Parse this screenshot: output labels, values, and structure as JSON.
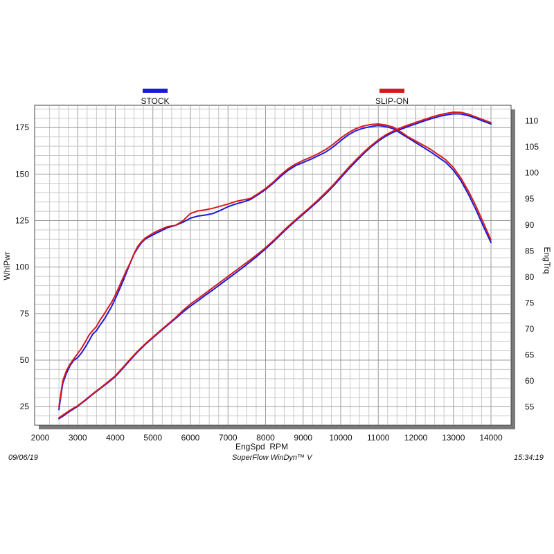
{
  "footer": {
    "date": "09/06/19",
    "software": "SuperFlow WinDyn™ V",
    "time": "15:34:19"
  },
  "chart_data": {
    "type": "line",
    "xlabel": "EngSpd  RPM",
    "ylabel_left": "WhlPwr",
    "ylabel_right": "EngTrq",
    "xlim": [
      2000,
      14000
    ],
    "xticks": [
      2000,
      3000,
      4000,
      5000,
      6000,
      7000,
      8000,
      9000,
      10000,
      11000,
      12000,
      13000,
      14000
    ],
    "ylim_left": [
      15,
      187
    ],
    "yticks_left": [
      25,
      50,
      75,
      100,
      125,
      150,
      175
    ],
    "ylim_right": [
      51.5,
      113
    ],
    "yticks_right": [
      55,
      60,
      65,
      70,
      75,
      80,
      85,
      90,
      95,
      100,
      105,
      110
    ],
    "grid": true,
    "legend": [
      {
        "name": "STOCK",
        "color": "#1a1adc"
      },
      {
        "name": "SLIP-ON",
        "color": "#d81a1a"
      }
    ],
    "series": [
      {
        "name": "STOCK",
        "quantity": "power",
        "axis": "left",
        "color": "#1a1adc",
        "x": [
          2500,
          2600,
          2800,
          3000,
          3200,
          3400,
          3600,
          3800,
          4000,
          4200,
          4400,
          4600,
          4800,
          5000,
          5200,
          5400,
          5600,
          5800,
          6000,
          6200,
          6400,
          6600,
          6800,
          7000,
          7200,
          7400,
          7600,
          7800,
          8000,
          8200,
          8400,
          8600,
          8800,
          9000,
          9200,
          9400,
          9600,
          9800,
          10000,
          10200,
          10400,
          10600,
          10800,
          11000,
          11200,
          11400,
          11600,
          11800,
          12000,
          12200,
          12400,
          12600,
          12800,
          13000,
          13200,
          13400,
          13600,
          13800,
          14000
        ],
        "y": [
          18.5,
          19.8,
          22.6,
          25.2,
          28.3,
          31.6,
          34.7,
          37.8,
          41.1,
          45.5,
          50.1,
          54.5,
          58.4,
          62.0,
          65.5,
          68.9,
          72.3,
          75.8,
          79.0,
          81.9,
          84.9,
          87.8,
          90.8,
          93.8,
          96.8,
          99.8,
          103.0,
          106.3,
          109.8,
          113.5,
          117.4,
          121.3,
          124.9,
          128.4,
          131.9,
          135.5,
          139.4,
          143.5,
          148.0,
          152.5,
          156.7,
          160.8,
          164.5,
          167.7,
          170.4,
          172.5,
          174.1,
          175.6,
          177.0,
          178.4,
          179.7,
          180.9,
          181.8,
          182.4,
          182.3,
          181.4,
          180.0,
          178.4,
          176.9
        ]
      },
      {
        "name": "SLIP-ON",
        "quantity": "power",
        "axis": "left",
        "color": "#d81a1a",
        "x": [
          2500,
          2600,
          2800,
          3000,
          3200,
          3400,
          3600,
          3800,
          4000,
          4200,
          4400,
          4600,
          4800,
          5000,
          5200,
          5400,
          5600,
          5800,
          6000,
          6200,
          6400,
          6600,
          6800,
          7000,
          7200,
          7400,
          7600,
          7800,
          8000,
          8200,
          8400,
          8600,
          8800,
          9000,
          9200,
          9400,
          9600,
          9800,
          10000,
          10200,
          10400,
          10600,
          10800,
          11000,
          11200,
          11400,
          11600,
          11800,
          12000,
          12200,
          12400,
          12600,
          12800,
          13000,
          13200,
          13400,
          13600,
          13800,
          14000
        ],
        "y": [
          19.0,
          20.4,
          23.1,
          25.5,
          28.6,
          31.9,
          35.0,
          38.2,
          41.6,
          46.0,
          50.6,
          54.9,
          58.8,
          62.4,
          65.9,
          69.3,
          72.8,
          76.6,
          80.1,
          83.0,
          86.0,
          89.0,
          92.0,
          95.0,
          98.0,
          101.0,
          104.0,
          107.1,
          110.5,
          114.1,
          118.0,
          121.9,
          125.5,
          129.0,
          132.5,
          136.2,
          140.1,
          144.2,
          148.8,
          153.3,
          157.5,
          161.5,
          165.2,
          168.4,
          171.1,
          173.2,
          174.9,
          176.4,
          177.8,
          179.2,
          180.5,
          181.7,
          182.6,
          183.3,
          183.2,
          182.2,
          180.7,
          179.2,
          177.6
        ]
      },
      {
        "name": "STOCK",
        "quantity": "torque",
        "axis": "right",
        "color": "#1a1adc",
        "x": [
          2500,
          2550,
          2600,
          2700,
          2800,
          2900,
          3000,
          3100,
          3200,
          3300,
          3400,
          3500,
          3600,
          3700,
          3800,
          3900,
          4000,
          4100,
          4200,
          4300,
          4400,
          4500,
          4600,
          4700,
          4800,
          5000,
          5200,
          5400,
          5600,
          5800,
          6000,
          6200,
          6400,
          6600,
          6800,
          7000,
          7200,
          7400,
          7600,
          7800,
          8000,
          8200,
          8400,
          8600,
          8800,
          9000,
          9200,
          9400,
          9600,
          9800,
          10000,
          10200,
          10400,
          10600,
          10800,
          11000,
          11200,
          11400,
          11600,
          11800,
          12000,
          12200,
          12400,
          12600,
          12800,
          13000,
          13200,
          13400,
          13600,
          13800,
          14000
        ],
        "y": [
          54.5,
          57.0,
          59.5,
          61.5,
          63.0,
          64.0,
          64.5,
          65.4,
          66.5,
          67.7,
          69.0,
          69.7,
          70.8,
          71.8,
          73.0,
          74.3,
          75.8,
          77.4,
          79.1,
          80.9,
          82.7,
          84.4,
          85.6,
          86.6,
          87.3,
          88.1,
          88.8,
          89.5,
          89.9,
          90.5,
          91.3,
          91.7,
          91.9,
          92.2,
          92.8,
          93.5,
          94.0,
          94.4,
          94.9,
          95.8,
          96.8,
          98.0,
          99.3,
          100.5,
          101.4,
          102.0,
          102.6,
          103.3,
          104.0,
          105.0,
          106.2,
          107.3,
          108.1,
          108.6,
          108.9,
          109.1,
          108.9,
          108.5,
          107.6,
          106.7,
          105.8,
          104.9,
          104.0,
          103.0,
          102.0,
          100.5,
          98.5,
          95.9,
          92.9,
          89.7,
          86.6
        ]
      },
      {
        "name": "SLIP-ON",
        "quantity": "torque",
        "axis": "right",
        "color": "#d81a1a",
        "x": [
          2500,
          2550,
          2600,
          2700,
          2800,
          2900,
          3000,
          3100,
          3200,
          3300,
          3400,
          3500,
          3600,
          3700,
          3800,
          3900,
          4000,
          4100,
          4200,
          4300,
          4400,
          4500,
          4600,
          4700,
          4800,
          5000,
          5200,
          5400,
          5600,
          5800,
          6000,
          6200,
          6400,
          6600,
          6800,
          7000,
          7200,
          7400,
          7600,
          7800,
          8000,
          8200,
          8400,
          8600,
          8800,
          9000,
          9200,
          9400,
          9600,
          9800,
          10000,
          10200,
          10400,
          10600,
          10800,
          11000,
          11200,
          11400,
          11600,
          11800,
          12000,
          12200,
          12400,
          12600,
          12800,
          13000,
          13200,
          13400,
          13600,
          13800,
          14000
        ],
        "y": [
          55.0,
          57.5,
          60.0,
          62.0,
          63.3,
          64.3,
          65.3,
          66.3,
          67.5,
          68.8,
          69.7,
          70.5,
          71.8,
          72.8,
          74.0,
          75.1,
          76.5,
          78.1,
          79.7,
          81.3,
          82.8,
          84.5,
          85.9,
          86.8,
          87.5,
          88.4,
          89.1,
          89.7,
          89.9,
          90.8,
          92.2,
          92.7,
          92.9,
          93.2,
          93.6,
          94.0,
          94.5,
          94.8,
          95.1,
          96.0,
          97.0,
          98.2,
          99.6,
          100.8,
          101.7,
          102.4,
          103.0,
          103.7,
          104.5,
          105.5,
          106.7,
          107.7,
          108.5,
          109.0,
          109.3,
          109.4,
          109.2,
          108.8,
          107.9,
          106.9,
          106.1,
          105.3,
          104.5,
          103.5,
          102.5,
          101.0,
          99.0,
          96.5,
          93.6,
          90.4,
          87.1
        ]
      }
    ]
  }
}
